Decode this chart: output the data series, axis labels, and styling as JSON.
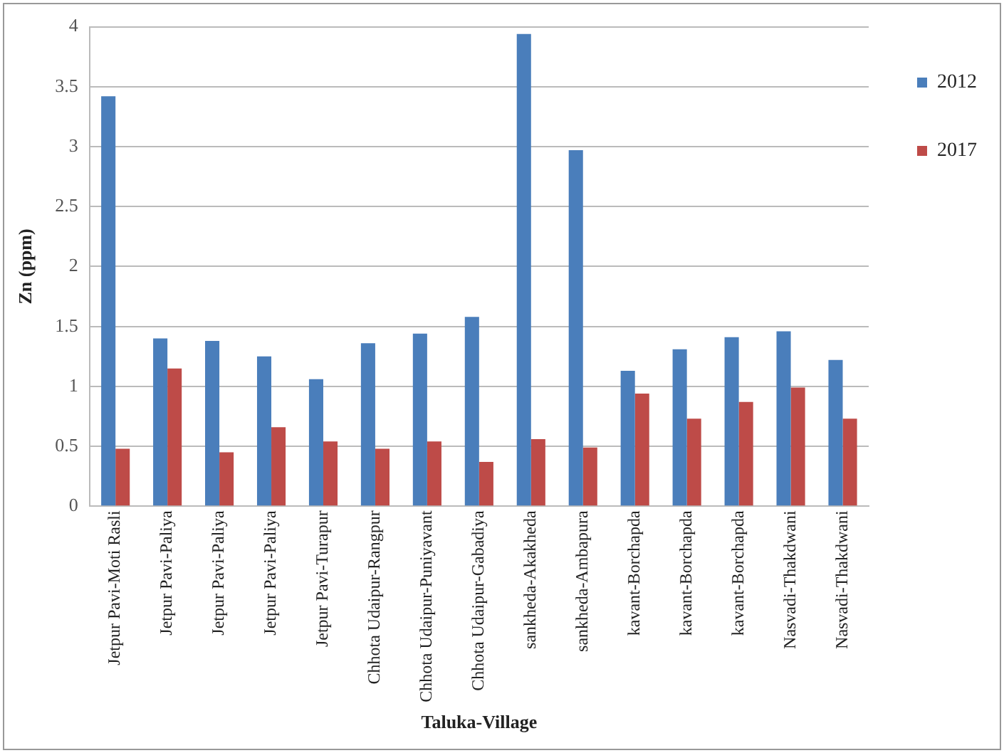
{
  "chart_data": {
    "type": "bar",
    "xlabel": "Taluka-Village",
    "ylabel": "Zn (ppm)",
    "categories": [
      "Jetpur Pavi-Moti Rasli",
      "Jetpur Pavi-Paliya",
      "Jetpur Pavi-Paliya",
      "Jetpur Pavi-Paliya",
      "Jetpur Pavi-Turapur",
      "Chhota Udaipur-Rangpur",
      "Chhota Udaipur-Puniyavant",
      "Chhota Udaipur-Gabadiya",
      "sankheda-Akakheda",
      "sankheda-Ambapura",
      "kavant-Borchapda",
      "kavant-Borchapda",
      "kavant-Borchapda",
      "Nasvadi-Thakdwani",
      "Nasvadi-Thakdwani"
    ],
    "series": [
      {
        "name": "2012",
        "color": "#4a7ebb",
        "values": [
          3.42,
          1.4,
          1.38,
          1.25,
          1.06,
          1.36,
          1.44,
          1.58,
          3.94,
          2.97,
          1.13,
          1.31,
          1.41,
          1.46,
          1.22
        ]
      },
      {
        "name": "2017",
        "color": "#be4b48",
        "values": [
          0.48,
          1.15,
          0.45,
          0.66,
          0.54,
          0.48,
          0.54,
          0.37,
          0.56,
          0.49,
          0.94,
          0.73,
          0.87,
          0.99,
          0.73
        ]
      }
    ],
    "ylim": [
      0,
      4
    ],
    "yticks": [
      0,
      0.5,
      1,
      1.5,
      2,
      2.5,
      3,
      3.5,
      4
    ],
    "grid": "y",
    "legend": "top right"
  }
}
